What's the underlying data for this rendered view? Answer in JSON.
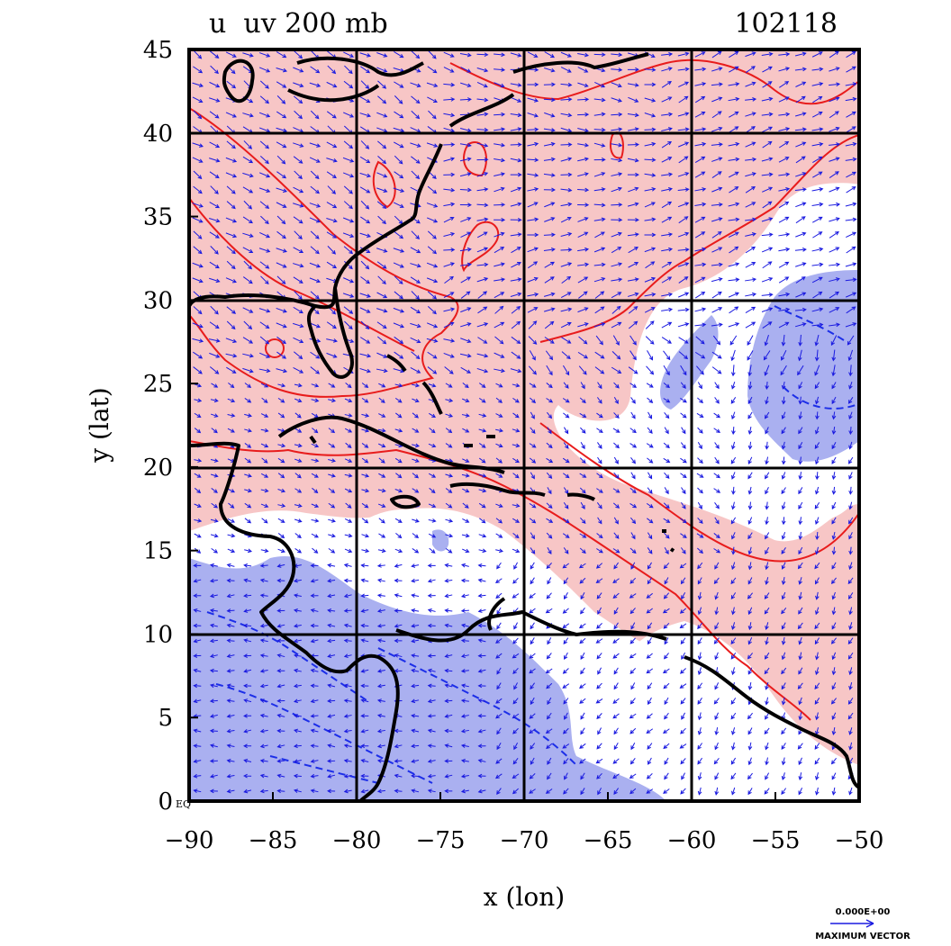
{
  "chart_data": {
    "type": "contour",
    "title": "u  uv 200 mb",
    "date_label": "102118",
    "xlabel": "x (lon)",
    "ylabel": "y (lat)",
    "xlim": [
      -90,
      -50
    ],
    "ylim": [
      0,
      45
    ],
    "xticks": [
      -90,
      -85,
      -80,
      -75,
      -70,
      -65,
      -60,
      -55,
      -50
    ],
    "yticks": [
      0,
      5,
      10,
      15,
      20,
      25,
      30,
      35,
      40,
      45
    ],
    "xtick_labels": [
      "−90",
      "−85",
      "−80",
      "−75",
      "−70",
      "−65",
      "−60",
      "−55",
      "−50"
    ],
    "ytick_labels": [
      "0",
      "5",
      "10",
      "15",
      "20",
      "25",
      "30",
      "35",
      "40",
      "45"
    ],
    "eq_label": "EQ",
    "grid_lon": [
      -80,
      -70,
      -60
    ],
    "grid_lat": [
      10,
      20,
      30,
      40
    ],
    "grid": true,
    "vector_legend": {
      "value_label": "0.000E+00",
      "caption": "MAXIMUM VECTOR"
    },
    "colors": {
      "positive_fill": "#f7c6c6",
      "negative_fill": "#aab0f0",
      "positive_contour": "#e81c1c",
      "negative_contour": "#1c2ee8",
      "vectors": "#1a1ae0",
      "coast": "#000000"
    },
    "legend": "none"
  }
}
